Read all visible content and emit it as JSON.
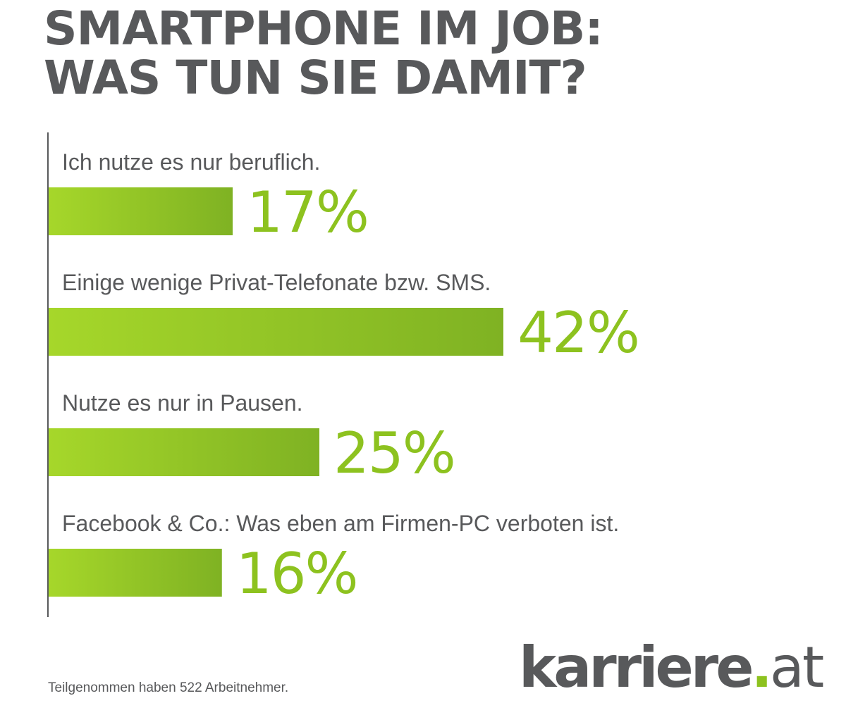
{
  "title": {
    "line1": "SMARTPHONE IM JOB:",
    "line2": "WAS TUN SIE DAMIT?"
  },
  "colors": {
    "text_gray": "#58595b",
    "accent_green": "#8dc21f",
    "bar_gradient_start": "#a6d72a",
    "bar_gradient_end": "#7fb223",
    "value_green": "#8dc21f"
  },
  "chart_data": {
    "type": "bar",
    "orientation": "horizontal",
    "title": "SMARTPHONE IM JOB: WAS TUN SIE DAMIT?",
    "categories": [
      "Ich nutze es nur beruflich.",
      "Einige wenige Privat-Telefonate bzw. SMS.",
      "Nutze es nur in Pausen.",
      "Facebook & Co.: Was eben am Firmen-PC verboten ist."
    ],
    "values": [
      17,
      42,
      25,
      16
    ],
    "value_labels": [
      "17%",
      "42%",
      "25%",
      "16%"
    ],
    "unit": "%",
    "xlim": [
      0,
      100
    ],
    "grid": false,
    "legend": "none"
  },
  "footnote": "Teilgenommen haben 522 Arbeitnehmer.",
  "logo": {
    "text": "karriere.at",
    "icon": "karriere-at-logo"
  }
}
